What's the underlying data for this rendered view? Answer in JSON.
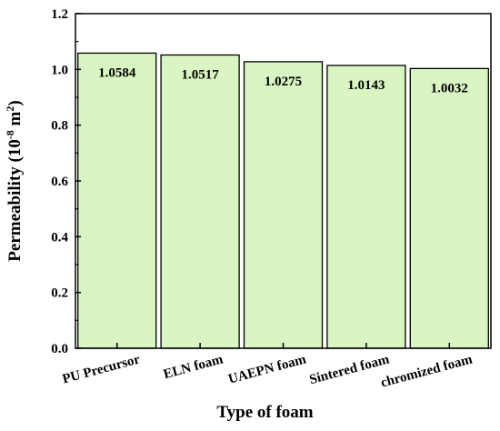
{
  "chart_data": {
    "type": "bar",
    "title": "",
    "xlabel": "Type of foam",
    "ylabel_main": "Permeability (10",
    "ylabel_exp": "-8",
    "ylabel_unit": " m",
    "ylabel_unit_exp": "2",
    "ylabel_close": ")",
    "categories": [
      "PU Precursor",
      "ELN foam",
      "UAEPN foam",
      "Sintered foam",
      "chromized foam"
    ],
    "values": [
      1.0584,
      1.0517,
      1.0275,
      1.0143,
      1.0032
    ],
    "value_labels": [
      "1.0584",
      "1.0517",
      "1.0275",
      "1.0143",
      "1.0032"
    ],
    "ylim": [
      0,
      1.2
    ],
    "yticks": [
      "0.0",
      "0.2",
      "0.4",
      "0.6",
      "0.8",
      "1.0",
      "1.2"
    ],
    "grid": false,
    "legend": "none",
    "colors": {
      "bar_fill": "#d9f5c2",
      "bar_stroke": "#000000",
      "axis": "#000000"
    }
  }
}
